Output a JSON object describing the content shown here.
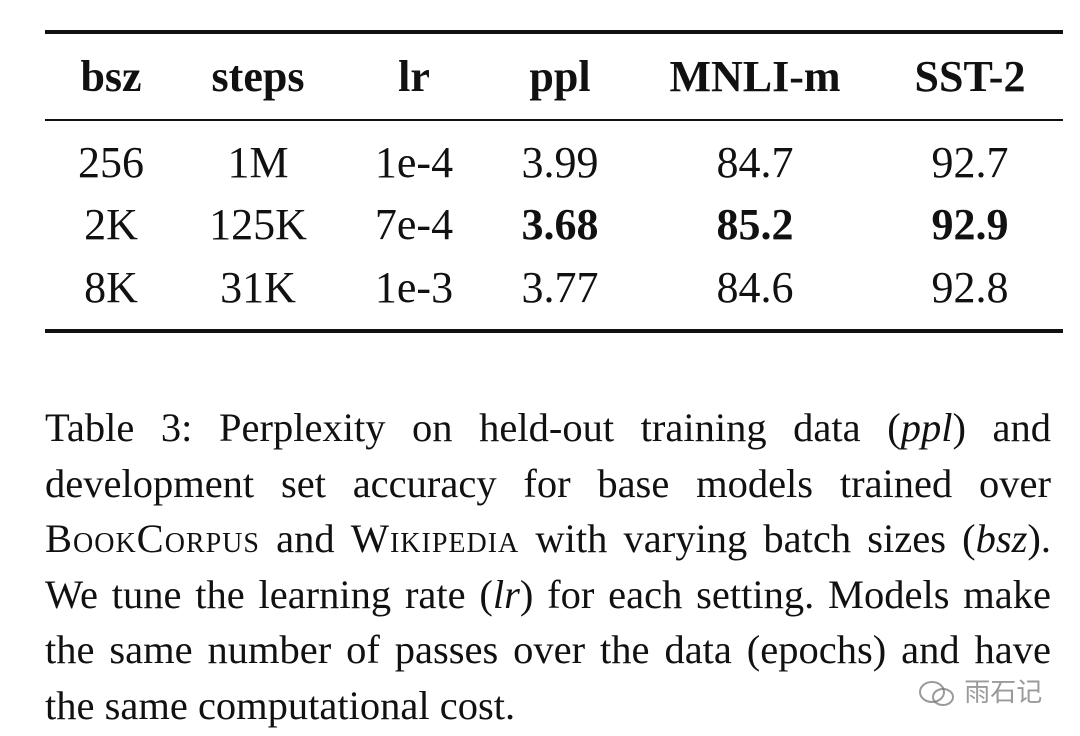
{
  "table": {
    "header": [
      "bsz",
      "steps",
      "lr",
      "ppl",
      "MNLI-m",
      "SST-2"
    ],
    "rows": [
      [
        "256",
        "1M",
        "1e-4",
        "3.99",
        "84.7",
        "92.7"
      ],
      [
        "2K",
        "125K",
        "7e-4",
        "3.68",
        "85.2",
        "92.9"
      ],
      [
        "8K",
        "31K",
        "1e-3",
        "3.77",
        "84.6",
        "92.8"
      ]
    ],
    "bold_cells": [
      [
        1,
        3
      ],
      [
        1,
        4
      ],
      [
        1,
        5
      ]
    ]
  },
  "caption": [
    {
      "text": "Table 3: Perplexity on held-out training data (",
      "style": "normal"
    },
    {
      "text": "ppl",
      "style": "italic"
    },
    {
      "text": ") and development set accuracy for base models trained over ",
      "style": "normal"
    },
    {
      "text": "BookCorpus",
      "style": "smallcaps"
    },
    {
      "text": " and ",
      "style": "normal"
    },
    {
      "text": "Wikipedia",
      "style": "smallcaps"
    },
    {
      "text": " with varying batch sizes (",
      "style": "normal"
    },
    {
      "text": "bsz",
      "style": "italic"
    },
    {
      "text": "). We tune the learning rate (",
      "style": "normal"
    },
    {
      "text": "lr",
      "style": "italic"
    },
    {
      "text": ") for each setting. Models make the same number of passes over the data (epochs) and have the same computational cost.",
      "style": "normal"
    }
  ],
  "watermark": "雨石记"
}
